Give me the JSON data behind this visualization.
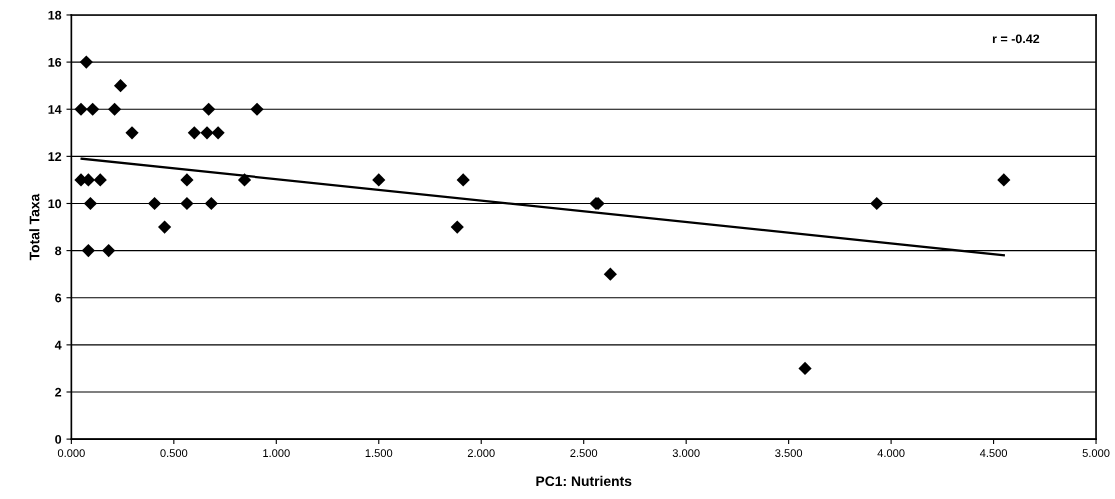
{
  "chart_data": {
    "type": "scatter",
    "xlabel": "PC1: Nutrients",
    "ylabel": "Total Taxa",
    "annotations": [
      "r = -0.42"
    ],
    "series": [
      {
        "color": "#000000",
        "marker": "diamond",
        "x": [
          0.073,
          0.24,
          0.047,
          0.104,
          0.211,
          0.67,
          0.906,
          0.296,
          0.6,
          0.662,
          0.716,
          0.047,
          0.083,
          0.141,
          0.564,
          0.845,
          0.093,
          0.406,
          0.564,
          0.683,
          0.455,
          0.083,
          0.182,
          1.5,
          1.912,
          1.883,
          2.56,
          2.57,
          2.63,
          3.58,
          3.93,
          4.55
        ],
        "values": [
          16,
          15,
          14,
          14,
          14,
          14,
          14,
          13,
          13,
          13,
          13,
          11,
          11,
          11,
          11,
          11,
          10,
          10,
          10,
          10,
          9,
          8,
          8,
          11,
          11,
          9,
          10,
          10,
          7,
          3,
          10,
          11
        ]
      },
      {
        "type": "line",
        "color": "#000000",
        "marker": "none",
        "x": [
          0.05,
          4.55
        ],
        "values": [
          11.9,
          7.8
        ]
      }
    ],
    "xlim": [
      0,
      5
    ],
    "xticks": [
      {
        "value": 0,
        "label": "0.000"
      },
      {
        "value": 0.5,
        "label": "0.500"
      },
      {
        "value": 1,
        "label": "1.000"
      },
      {
        "value": 1.5,
        "label": "1.500"
      },
      {
        "value": 2,
        "label": "2.000"
      },
      {
        "value": 2.5,
        "label": "2.500"
      },
      {
        "value": 3,
        "label": "3.000"
      },
      {
        "value": 3.5,
        "label": "3.500"
      },
      {
        "value": 4,
        "label": "4.000"
      },
      {
        "value": 4.5,
        "label": "4.500"
      },
      {
        "value": 5,
        "label": "5.000"
      }
    ],
    "ylim": [
      0,
      18
    ],
    "yticks": [
      0,
      2,
      4,
      6,
      8,
      10,
      12,
      14,
      16,
      18
    ],
    "grid": "y",
    "legend": false
  }
}
